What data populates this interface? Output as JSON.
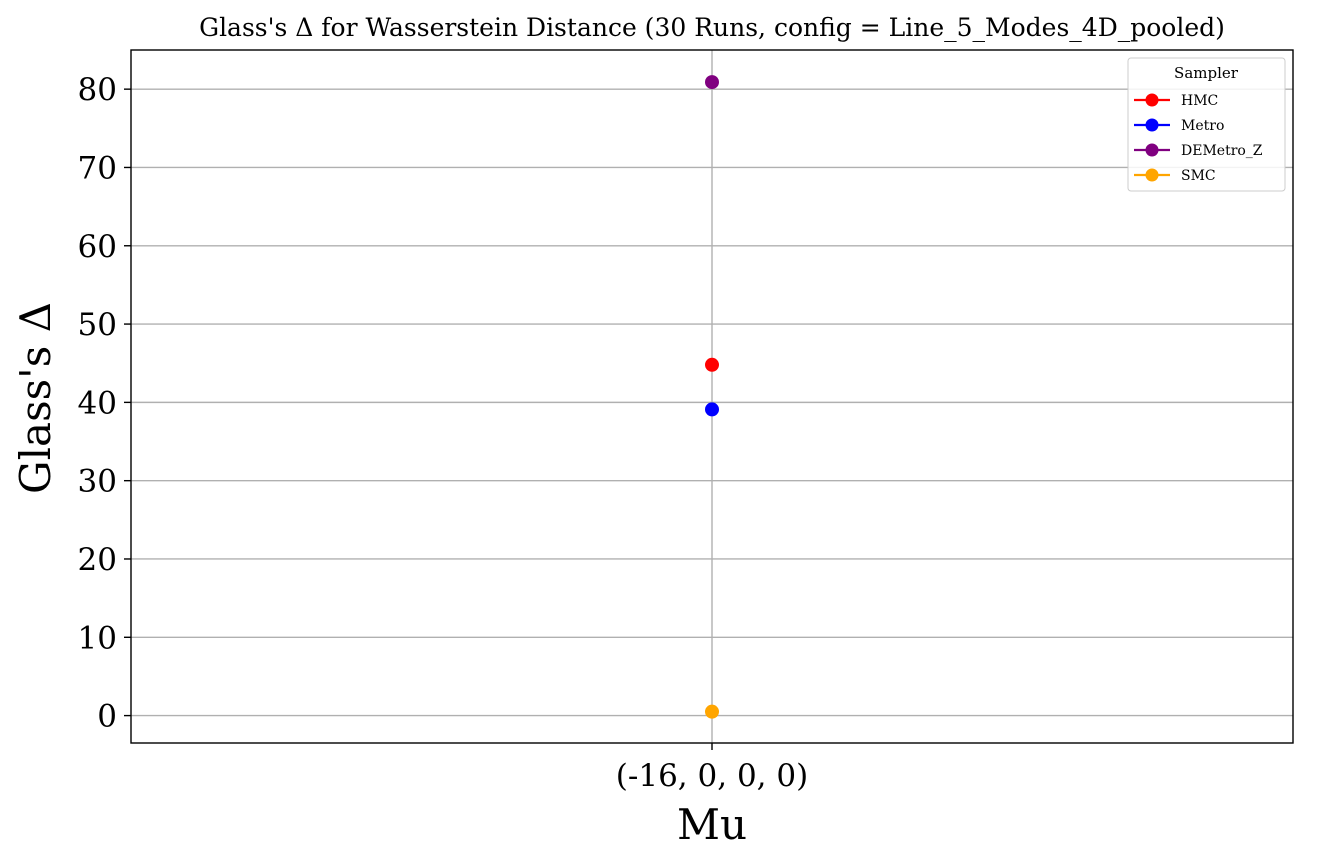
{
  "chart_data": {
    "type": "scatter",
    "title": "Glass's Δ for Wasserstein Distance (30 Runs, config = Line_5_Modes_4D_pooled)",
    "xlabel": "Mu",
    "ylabel": "Glass's Δ",
    "categories": [
      "(-16, 0, 0, 0)"
    ],
    "ylim": [
      -3.5,
      85
    ],
    "yticks": [
      0,
      10,
      20,
      30,
      40,
      50,
      60,
      70,
      80
    ],
    "grid": true,
    "legend": {
      "title": "Sampler",
      "placement": "top-right"
    },
    "series": [
      {
        "name": "HMC",
        "color": "#ff0000",
        "values": [
          44.8
        ]
      },
      {
        "name": "Metro",
        "color": "#0000ff",
        "values": [
          39.1
        ]
      },
      {
        "name": "DEMetro_Z",
        "color": "#800080",
        "values": [
          80.9
        ]
      },
      {
        "name": "SMC",
        "color": "#ffa500",
        "values": [
          0.5
        ]
      }
    ]
  }
}
